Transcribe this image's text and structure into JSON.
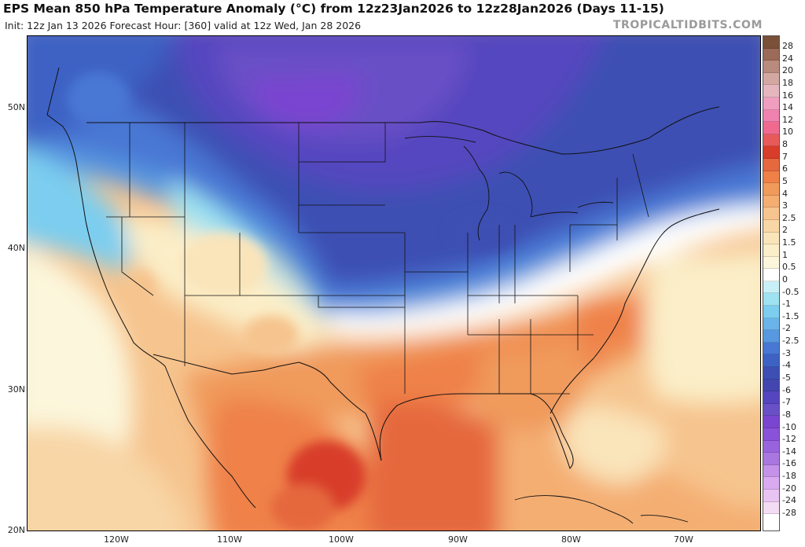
{
  "header": {
    "title": "EPS Mean 850 hPa Temperature Anomaly (°C) from 12z23Jan2026 to 12z28Jan2026 (Days 11-15)",
    "subtitle": "Init: 12z Jan 13 2026   Forecast Hour: [360]   valid at 12z Wed, Jan 28 2026",
    "credit": "TROPICALTIDBITS.COM"
  },
  "map": {
    "lat_labels": [
      "50N",
      "40N",
      "30N",
      "20N"
    ],
    "lon_labels": [
      "120W",
      "110W",
      "100W",
      "90W",
      "80W",
      "70W"
    ],
    "colors": {
      "deep_purple": "#7a45d0",
      "purple": "#6950c6",
      "deep_blue": "#3d4fb3",
      "blue": "#4877d4",
      "light_blue": "#6ab4ea",
      "cyan": "#9fe2f1",
      "neutral": "#ffffff",
      "cream": "#fbeec2",
      "peach": "#f6c48e",
      "orange": "#f09a5c",
      "dark_orange": "#e5683e",
      "red": "#d83c2a"
    }
  },
  "colorbar": {
    "labels": [
      "28",
      "24",
      "20",
      "18",
      "16",
      "14",
      "12",
      "10",
      "8",
      "7",
      "6",
      "5",
      "4",
      "3",
      "2.5",
      "2",
      "1.5",
      "1",
      "0.5",
      "0",
      "-0.5",
      "-1",
      "-1.5",
      "-2",
      "-2.5",
      "-3",
      "-4",
      "-5",
      "-6",
      "-7",
      "-8",
      "-10",
      "-12",
      "-14",
      "-16",
      "-18",
      "-20",
      "-24",
      "-28"
    ],
    "colors": [
      "#7a5038",
      "#9b6a58",
      "#b88b7e",
      "#d4a8a2",
      "#e6b6bf",
      "#ef9ec0",
      "#f082b0",
      "#f06a8f",
      "#e85a5a",
      "#d83c2a",
      "#e5683e",
      "#ef8148",
      "#f09a5c",
      "#f4ae72",
      "#f6c48e",
      "#f8d6a6",
      "#fae4ba",
      "#fbeec8",
      "#fcf6dc",
      "#ffffff",
      "#c8f0f6",
      "#9fe2f1",
      "#7ccdef",
      "#6ab4ea",
      "#5898e0",
      "#4877d4",
      "#3d62c4",
      "#3d4fb3",
      "#4446b0",
      "#5546bf",
      "#6950c6",
      "#7a45d0",
      "#8a52d8",
      "#9a63de",
      "#aa76e0",
      "#c492e8",
      "#d9aaef",
      "#e8c4f2",
      "#f4dcf5"
    ]
  }
}
